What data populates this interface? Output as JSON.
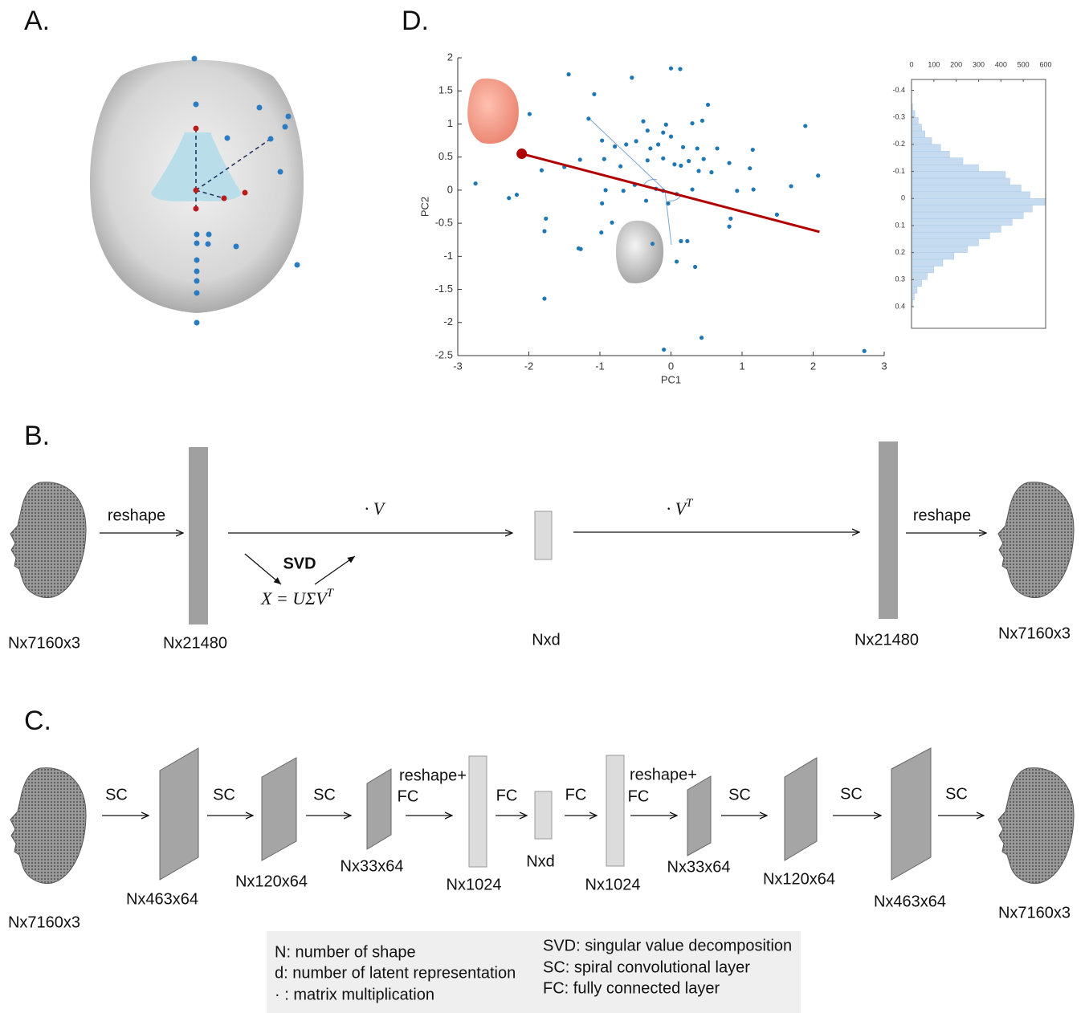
{
  "panel_labels": [
    "A.",
    "D.",
    "B.",
    "C."
  ],
  "chart_data": [
    {
      "type": "scatter",
      "x_label": "PC1",
      "y_label": "PC2",
      "color": "#1f77b4",
      "x": [
        -1.99,
        -1.44,
        -0.55,
        0,
        0.13,
        -1.08,
        -1.16,
        0.52,
        0.44,
        0.3,
        -0.39,
        -0.33,
        -0.07,
        -0.11,
        0,
        -0.97,
        -0.79,
        -0.63,
        -0.49,
        -0.29,
        -0.18,
        0.17,
        0.37,
        0.65,
        1.15,
        -0.94,
        -1.28,
        -0.71,
        -0.33,
        -0.11,
        0.05,
        0.14,
        0.25,
        0.46,
        0.39,
        0.57,
        0.82,
        1.11,
        -1.5,
        -1.82,
        -2.75,
        -2.28,
        -2.17,
        -0.92,
        -0.67,
        -0.51,
        -0.21,
        -0.11,
        0.08,
        0.3,
        0.93,
        1.16,
        1.69,
        2.07,
        1.89,
        -0.97,
        -0.35,
        -0.04,
        0.84,
        0.82,
        1.49,
        -1.76,
        -1.78,
        -0.98,
        -0.83,
        -1.3,
        -1.27,
        -0.26,
        0.14,
        0.23,
        0.08,
        0.34,
        -1.78,
        0.43,
        -0.1,
        2.72
      ],
      "y": [
        1.15,
        1.75,
        1.7,
        1.84,
        1.83,
        1.45,
        1.08,
        1.29,
        1.05,
        1.01,
        1.04,
        0.9,
        0.99,
        0.87,
        0.81,
        0.75,
        0.66,
        0.69,
        0.74,
        0.63,
        0.69,
        0.65,
        0.63,
        0.63,
        0.61,
        0.47,
        0.46,
        0.36,
        0.45,
        0.48,
        0.39,
        0.37,
        0.44,
        0.47,
        0.29,
        0.27,
        0.41,
        0.33,
        0.35,
        0.3,
        0.1,
        -0.12,
        -0.07,
        0,
        -0.01,
        0.08,
        0.02,
        -0.01,
        -0.06,
        0.01,
        -0.01,
        0.01,
        0.06,
        0.22,
        0.97,
        -0.2,
        -0.16,
        -0.2,
        -0.43,
        -0.55,
        -0.37,
        -0.43,
        -0.62,
        -0.64,
        -0.49,
        -0.88,
        -0.89,
        -0.81,
        -0.77,
        -0.77,
        -1.08,
        -1.16,
        -1.64,
        -2.23,
        -2.41,
        -2.43
      ],
      "line": {
        "color": "#b00000",
        "x": [
          -2.1,
          2.09
        ],
        "y": [
          0.55,
          -0.63
        ]
      },
      "xlim": [
        -3,
        3
      ],
      "ylim": [
        -2.5,
        2
      ],
      "xticks": [
        -3,
        -2,
        -1,
        0,
        1,
        2,
        3
      ],
      "yticks": [
        -2.5,
        -2,
        -1.5,
        -1,
        -0.5,
        0,
        0.5,
        1,
        1.5,
        2
      ]
    },
    {
      "type": "histogram",
      "orientation": "horizontal",
      "color": "#c6dbef",
      "bins": [
        -0.35,
        -0.325,
        -0.3,
        -0.275,
        -0.25,
        -0.225,
        -0.2,
        -0.175,
        -0.15,
        -0.125,
        -0.1,
        -0.075,
        -0.05,
        -0.025,
        0,
        0.025,
        0.05,
        0.075,
        0.1,
        0.125,
        0.15,
        0.175,
        0.2,
        0.225,
        0.25,
        0.275,
        0.3,
        0.325,
        0.35,
        0.375,
        0.4
      ],
      "counts": [
        5,
        15,
        30,
        45,
        60,
        90,
        130,
        170,
        230,
        300,
        420,
        440,
        490,
        530,
        600,
        540,
        500,
        450,
        400,
        350,
        300,
        250,
        190,
        140,
        100,
        70,
        45,
        25,
        12,
        5
      ],
      "xlim": [
        0,
        600
      ],
      "ylim": [
        -0.44,
        0.48
      ],
      "xticks": [
        0,
        100,
        200,
        300,
        400,
        500,
        600
      ],
      "yticks": [
        -0.4,
        -0.3,
        -0.2,
        -0.1,
        0,
        0.1,
        0.2,
        0.3,
        0.4
      ]
    }
  ],
  "panel_b": {
    "reshape_in": "reshape",
    "dot_v": "· V",
    "svd": "SVD",
    "svd_formula": {
      "base": "X =  UΣV",
      "sup": "T"
    },
    "dot_vt": {
      "base": "· V",
      "sup": "T"
    },
    "reshape_out": "reshape",
    "sizes": [
      "Nx7160x3",
      "Nx21480",
      "Nxd",
      "Nx21480",
      "Nx7160x3"
    ]
  },
  "panel_c": {
    "ops": [
      "SC",
      "SC",
      "SC",
      "reshape+",
      "FC",
      "FC",
      "FC",
      "reshape+",
      "FC",
      "SC",
      "SC",
      "SC"
    ],
    "sizes": [
      "Nx7160x3",
      "Nx463x64",
      "Nx120x64",
      "Nx33x64",
      "Nx1024",
      "Nxd",
      "Nx1024",
      "Nx33x64",
      "Nx120x64",
      "Nx463x64",
      "Nx7160x3"
    ]
  },
  "legend": {
    "left": [
      "N: number of shape",
      "d: number of latent representation",
      "· : matrix multiplication"
    ],
    "right": [
      "SVD: singular value decomposition",
      "SC: spiral convolutional layer",
      "FC: fully connected layer"
    ]
  }
}
